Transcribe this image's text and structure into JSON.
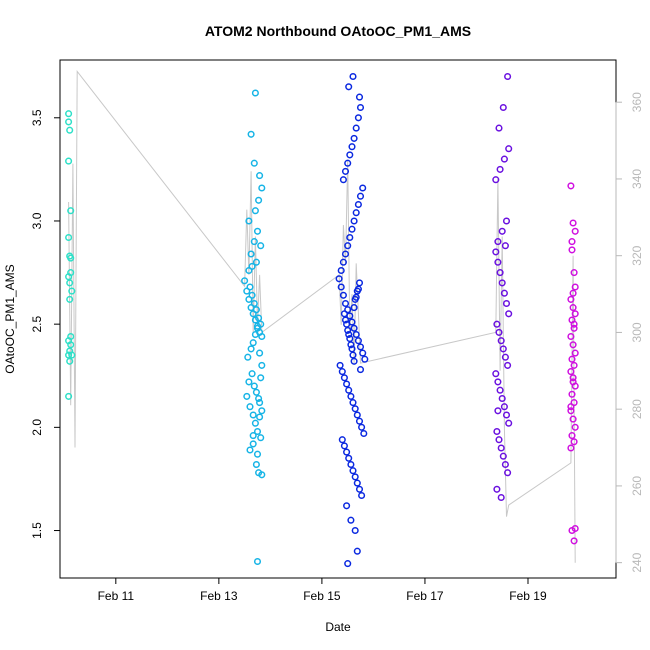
{
  "chart_data": {
    "type": "scatter",
    "title": "ATOM2 Northbound OAtoOC_PM1_AMS",
    "xlabel": "Date",
    "ylabel": "OAtoOC_PM1_AMS",
    "xlim": [
      "2017-02-09T22:00",
      "2017-02-20T17:00"
    ],
    "ylim": [
      1.27,
      3.78
    ],
    "y2lim": [
      236,
      371
    ],
    "x_ticks": [
      {
        "date": "2017-02-11",
        "label": "Feb 11"
      },
      {
        "date": "2017-02-13",
        "label": "Feb 13"
      },
      {
        "date": "2017-02-15",
        "label": "Feb 15"
      },
      {
        "date": "2017-02-17",
        "label": "Feb 17"
      },
      {
        "date": "2017-02-19",
        "label": "Feb 19"
      }
    ],
    "y_ticks": [
      1.5,
      2.0,
      2.5,
      3.0,
      3.5
    ],
    "y_tick_labels": [
      "1.5",
      "2.0",
      "2.5",
      "3.0",
      "3.5"
    ],
    "y2_ticks": [
      240,
      260,
      280,
      300,
      320,
      340,
      360
    ],
    "y2_tick_labels": [
      "240",
      "260",
      "280",
      "300",
      "320",
      "340",
      "360"
    ],
    "grid": false,
    "point_style": "open-circle",
    "color_scale": "time (cyan → blue → violet → magenta)",
    "series": [
      {
        "color": "#2de0c8",
        "x": [
          "2017-02-10T02:00",
          "2017-02-10T02:00",
          "2017-02-10T02:30",
          "2017-02-10T02:00",
          "2017-02-10T03:00",
          "2017-02-10T02:00",
          "2017-02-10T02:30",
          "2017-02-10T03:00",
          "2017-02-10T02:00",
          "2017-02-10T03:00",
          "2017-02-10T02:30",
          "2017-02-10T03:30",
          "2017-02-10T02:30",
          "2017-02-10T03:00",
          "2017-02-10T02:00",
          "2017-02-10T03:00",
          "2017-02-10T02:30",
          "2017-02-10T02:00",
          "2017-02-10T03:30",
          "2017-02-10T02:30",
          "2017-02-10T02:00"
        ],
        "y": [
          3.52,
          3.48,
          3.44,
          3.29,
          3.05,
          2.92,
          2.83,
          2.82,
          2.73,
          2.75,
          2.7,
          2.66,
          2.62,
          2.44,
          2.42,
          2.4,
          2.37,
          2.35,
          2.35,
          2.32,
          2.15
        ]
      },
      {
        "color": "#16b4e6",
        "x": [
          "2017-02-13T12:00",
          "2017-02-13T13:00",
          "2017-02-13T14:00",
          "2017-02-13T15:00",
          "2017-02-13T16:00",
          "2017-02-13T17:00",
          "2017-02-13T18:00",
          "2017-02-13T19:00",
          "2017-02-13T20:00",
          "2017-02-13T14:30",
          "2017-02-13T15:30",
          "2017-02-13T16:30",
          "2017-02-13T17:30",
          "2017-02-13T18:30",
          "2017-02-13T19:30",
          "2017-02-13T13:30",
          "2017-02-13T15:00",
          "2017-02-13T16:00",
          "2017-02-13T17:00",
          "2017-02-13T18:00",
          "2017-02-13T19:00",
          "2017-02-13T20:00",
          "2017-02-13T14:00",
          "2017-02-13T15:30",
          "2017-02-13T16:30",
          "2017-02-13T17:30",
          "2017-02-13T18:30",
          "2017-02-13T19:30",
          "2017-02-13T13:00",
          "2017-02-13T14:30",
          "2017-02-13T16:00",
          "2017-02-13T17:00",
          "2017-02-13T18:00",
          "2017-02-13T19:00",
          "2017-02-13T20:00",
          "2017-02-13T15:00",
          "2017-02-13T16:30",
          "2017-02-13T18:00",
          "2017-02-13T19:30",
          "2017-02-13T14:00",
          "2017-02-13T17:00",
          "2017-02-13T18:30",
          "2017-02-13T20:00",
          "2017-02-13T15:30",
          "2017-02-13T17:30",
          "2017-02-13T19:00",
          "2017-02-13T16:00",
          "2017-02-13T18:00",
          "2017-02-13T14:30",
          "2017-02-13T19:30",
          "2017-02-13T16:30",
          "2017-02-13T17:00",
          "2017-02-13T15:00",
          "2017-02-13T18:30",
          "2017-02-13T20:00",
          "2017-02-13T17:30",
          "2017-02-13T16:00",
          "2017-02-13T19:00",
          "2017-02-13T14:00",
          "2017-02-13T18:00"
        ],
        "y": [
          2.71,
          2.66,
          2.62,
          2.58,
          2.55,
          2.52,
          2.49,
          2.46,
          2.44,
          2.68,
          2.64,
          2.6,
          2.57,
          2.53,
          2.5,
          2.34,
          2.38,
          2.41,
          2.45,
          2.48,
          2.36,
          2.3,
          2.22,
          2.26,
          2.2,
          2.17,
          2.14,
          2.24,
          2.15,
          2.1,
          2.06,
          2.02,
          1.98,
          2.12,
          2.08,
          2.84,
          2.9,
          2.95,
          2.88,
          3.0,
          3.05,
          3.1,
          3.16,
          2.78,
          2.8,
          3.22,
          1.92,
          1.87,
          1.89,
          1.95,
          3.28,
          3.62,
          3.42,
          1.78,
          1.77,
          1.82,
          1.96,
          2.05,
          2.76,
          1.35
        ]
      },
      {
        "color": "#0a28e0",
        "x": [
          "2017-02-15T08:00",
          "2017-02-15T09:00",
          "2017-02-15T10:00",
          "2017-02-15T11:00",
          "2017-02-15T12:00",
          "2017-02-15T13:00",
          "2017-02-15T14:00",
          "2017-02-15T15:00",
          "2017-02-15T16:00",
          "2017-02-15T17:00",
          "2017-02-15T18:00",
          "2017-02-15T19:00",
          "2017-02-15T20:00",
          "2017-02-15T08:30",
          "2017-02-15T09:30",
          "2017-02-15T10:30",
          "2017-02-15T11:30",
          "2017-02-15T12:30",
          "2017-02-15T13:30",
          "2017-02-15T14:30",
          "2017-02-15T15:30",
          "2017-02-15T16:30",
          "2017-02-15T17:30",
          "2017-02-15T18:30",
          "2017-02-15T19:30",
          "2017-02-15T09:00",
          "2017-02-15T10:00",
          "2017-02-15T11:00",
          "2017-02-15T12:00",
          "2017-02-15T13:00",
          "2017-02-15T14:00",
          "2017-02-15T15:00",
          "2017-02-15T16:00",
          "2017-02-15T17:00",
          "2017-02-15T18:00",
          "2017-02-15T19:00",
          "2017-02-15T09:30",
          "2017-02-15T10:30",
          "2017-02-15T11:30",
          "2017-02-15T12:30",
          "2017-02-15T13:30",
          "2017-02-15T14:30",
          "2017-02-15T15:30",
          "2017-02-15T16:30",
          "2017-02-15T17:30",
          "2017-02-15T18:30",
          "2017-02-15T10:00",
          "2017-02-15T11:00",
          "2017-02-15T12:00",
          "2017-02-15T13:00",
          "2017-02-15T14:00",
          "2017-02-15T15:00",
          "2017-02-15T16:00",
          "2017-02-15T17:00",
          "2017-02-15T18:00",
          "2017-02-15T10:30",
          "2017-02-15T11:30",
          "2017-02-15T12:30",
          "2017-02-15T13:30",
          "2017-02-15T14:30",
          "2017-02-15T15:30",
          "2017-02-15T16:30",
          "2017-02-15T17:30",
          "2017-02-15T11:00",
          "2017-02-15T12:00",
          "2017-02-15T13:00",
          "2017-02-15T14:00",
          "2017-02-15T15:00",
          "2017-02-15T16:00",
          "2017-02-15T17:00",
          "2017-02-15T11:30",
          "2017-02-15T13:30",
          "2017-02-15T15:30",
          "2017-02-15T17:30",
          "2017-02-15T12:30",
          "2017-02-15T14:30",
          "2017-02-15T16:30",
          "2017-02-15T12:00",
          "2017-02-15T15:00",
          "2017-02-15T18:00"
        ],
        "y": [
          2.72,
          2.68,
          2.64,
          2.6,
          2.57,
          2.54,
          2.51,
          2.48,
          2.45,
          2.42,
          2.39,
          2.36,
          2.33,
          2.3,
          2.27,
          2.24,
          2.21,
          2.18,
          2.15,
          2.12,
          2.09,
          2.06,
          2.03,
          2.0,
          1.97,
          2.76,
          2.8,
          2.84,
          2.88,
          2.92,
          2.96,
          3.0,
          3.04,
          3.08,
          3.12,
          3.16,
          1.94,
          1.91,
          1.88,
          1.85,
          1.82,
          1.79,
          1.76,
          1.73,
          1.7,
          1.67,
          3.2,
          3.24,
          3.28,
          3.32,
          3.36,
          3.4,
          3.45,
          3.5,
          3.55,
          2.55,
          2.5,
          2.45,
          2.4,
          2.35,
          2.62,
          2.66,
          2.7,
          2.52,
          2.47,
          2.43,
          2.38,
          2.58,
          2.63,
          2.67,
          1.62,
          1.55,
          1.5,
          3.6,
          3.65,
          3.7,
          1.4,
          1.34,
          2.32,
          2.28
        ]
      },
      {
        "color": "#6a10e0",
        "x": [
          "2017-02-18T09:00",
          "2017-02-18T10:00",
          "2017-02-18T11:00",
          "2017-02-18T12:00",
          "2017-02-18T13:00",
          "2017-02-18T14:00",
          "2017-02-18T15:00",
          "2017-02-18T09:30",
          "2017-02-18T10:30",
          "2017-02-18T11:30",
          "2017-02-18T12:30",
          "2017-02-18T13:30",
          "2017-02-18T14:30",
          "2017-02-18T09:00",
          "2017-02-18T10:00",
          "2017-02-18T11:00",
          "2017-02-18T12:00",
          "2017-02-18T13:00",
          "2017-02-18T14:00",
          "2017-02-18T15:00",
          "2017-02-18T09:30",
          "2017-02-18T10:30",
          "2017-02-18T11:30",
          "2017-02-18T12:30",
          "2017-02-18T13:30",
          "2017-02-18T14:30",
          "2017-02-18T10:00",
          "2017-02-18T12:00",
          "2017-02-18T14:00",
          "2017-02-18T09:00",
          "2017-02-18T11:00",
          "2017-02-18T13:00",
          "2017-02-18T15:00",
          "2017-02-18T10:30",
          "2017-02-18T12:30",
          "2017-02-18T14:30",
          "2017-02-18T09:30",
          "2017-02-18T11:30",
          "2017-02-18T13:30",
          "2017-02-18T10:00"
        ],
        "y": [
          2.85,
          2.8,
          2.75,
          2.7,
          2.65,
          2.6,
          2.55,
          2.5,
          2.46,
          2.42,
          2.38,
          2.34,
          2.3,
          2.26,
          2.22,
          2.18,
          2.14,
          2.1,
          2.06,
          2.02,
          1.98,
          1.94,
          1.9,
          1.86,
          1.82,
          1.78,
          2.9,
          2.95,
          3.0,
          3.2,
          3.25,
          3.3,
          3.35,
          3.45,
          3.55,
          3.7,
          1.7,
          1.66,
          2.88,
          2.08
        ]
      },
      {
        "color": "#d010e0",
        "x": [
          "2017-02-19T20:00",
          "2017-02-19T21:00",
          "2017-02-19T22:00",
          "2017-02-19T20:30",
          "2017-02-19T21:30",
          "2017-02-19T20:00",
          "2017-02-19T21:00",
          "2017-02-19T22:00",
          "2017-02-19T20:30",
          "2017-02-19T21:30",
          "2017-02-19T20:00",
          "2017-02-19T21:00",
          "2017-02-19T22:00",
          "2017-02-19T20:30",
          "2017-02-19T21:30",
          "2017-02-19T20:00",
          "2017-02-19T21:00",
          "2017-02-19T22:00",
          "2017-02-19T20:30",
          "2017-02-19T21:30",
          "2017-02-19T20:00",
          "2017-02-19T21:00",
          "2017-02-19T22:00",
          "2017-02-19T20:30",
          "2017-02-19T21:30",
          "2017-02-19T20:00",
          "2017-02-19T21:00",
          "2017-02-19T22:00",
          "2017-02-19T20:30",
          "2017-02-19T21:30",
          "2017-02-19T20:00",
          "2017-02-19T21:00",
          "2017-02-19T22:00",
          "2017-02-19T20:30",
          "2017-02-19T21:30"
        ],
        "y": [
          3.17,
          2.99,
          2.95,
          2.86,
          2.75,
          2.62,
          2.58,
          2.55,
          2.52,
          2.48,
          2.44,
          2.4,
          2.36,
          2.33,
          2.3,
          2.27,
          2.24,
          2.2,
          2.16,
          2.12,
          2.08,
          2.04,
          2.0,
          1.96,
          1.93,
          1.9,
          2.65,
          2.68,
          2.9,
          2.5,
          2.1,
          2.22,
          1.51,
          1.5,
          1.45
        ]
      }
    ],
    "line_series": {
      "axis": "right",
      "color": "#c8c8c8",
      "x": [
        "2017-02-10T02:00",
        "2017-02-10T03:00",
        "2017-02-10T04:00",
        "2017-02-10T05:00",
        "2017-02-10T06:00",
        "2017-02-13T12:00",
        "2017-02-13T13:00",
        "2017-02-13T14:00",
        "2017-02-13T15:00",
        "2017-02-13T16:00",
        "2017-02-13T17:00",
        "2017-02-13T18:00",
        "2017-02-13T19:00",
        "2017-02-13T20:00",
        "2017-02-15T08:00",
        "2017-02-15T09:00",
        "2017-02-15T10:00",
        "2017-02-15T11:00",
        "2017-02-15T12:00",
        "2017-02-15T13:00",
        "2017-02-15T14:00",
        "2017-02-15T15:00",
        "2017-02-15T16:00",
        "2017-02-15T17:00",
        "2017-02-15T18:00",
        "2017-02-18T09:00",
        "2017-02-18T10:00",
        "2017-02-18T11:00",
        "2017-02-18T12:00",
        "2017-02-18T13:00",
        "2017-02-18T14:00",
        "2017-02-18T15:00",
        "2017-02-19T20:00",
        "2017-02-19T21:00",
        "2017-02-19T22:00"
      ],
      "y": [
        334,
        281,
        344,
        270,
        368,
        312,
        332,
        315,
        342,
        300,
        325,
        302,
        315,
        300,
        315,
        302,
        328,
        318,
        345,
        300,
        310,
        292,
        318,
        305,
        292,
        300,
        340,
        290,
        325,
        275,
        252,
        255,
        266,
        320,
        240
      ]
    }
  }
}
